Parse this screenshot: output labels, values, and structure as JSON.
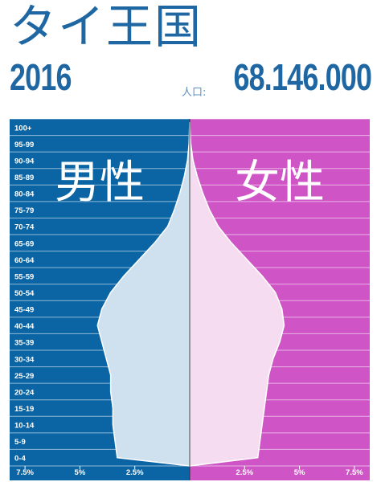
{
  "header": {
    "title": "タイ王国",
    "year": "2016",
    "population_label": "人口:",
    "population_value": "68.146.000"
  },
  "colors": {
    "male_bg": "#0b65a4",
    "female_bg": "#cf55c6",
    "male_fill": "#cfe1ee",
    "female_fill": "#f6dcf1",
    "heading": "#1f67a3"
  },
  "chart_data": {
    "type": "population-pyramid",
    "title": "タイ王国",
    "left_label": "男性",
    "right_label": "女性",
    "age_groups": [
      "0-4",
      "5-9",
      "10-14",
      "15-19",
      "20-24",
      "25-29",
      "30-34",
      "35-39",
      "40-44",
      "45-49",
      "50-54",
      "55-59",
      "60-64",
      "65-69",
      "70-74",
      "75-79",
      "80-84",
      "85-89",
      "90-94",
      "95-99",
      "100+"
    ],
    "male_percent": [
      3.3,
      3.4,
      3.5,
      3.5,
      3.6,
      3.6,
      3.8,
      4.0,
      4.2,
      4.0,
      3.6,
      3.0,
      2.3,
      1.6,
      1.0,
      0.7,
      0.45,
      0.25,
      0.1,
      0.03,
      0.01
    ],
    "female_percent": [
      3.1,
      3.2,
      3.3,
      3.4,
      3.5,
      3.6,
      3.8,
      4.1,
      4.3,
      4.2,
      3.9,
      3.3,
      2.6,
      1.9,
      1.3,
      0.9,
      0.6,
      0.35,
      0.15,
      0.05,
      0.01
    ],
    "x_ticks_left": [
      "7.5%",
      "5%",
      "2.5%"
    ],
    "x_ticks_right": [
      "2.5%",
      "5%",
      "7.5%"
    ],
    "x_max_percent": 8.2,
    "grid": true
  }
}
